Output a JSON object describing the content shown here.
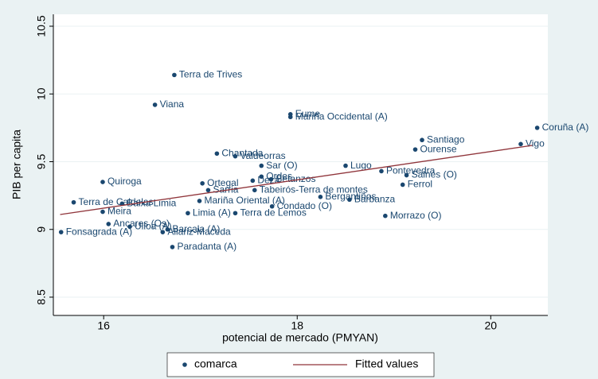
{
  "chart_data": {
    "type": "scatter",
    "x_label": "potencial de mercado (PMYAN)",
    "y_label": "PIB per capita",
    "xlim": [
      15.48,
      20.59
    ],
    "xticks": [
      16,
      18,
      20
    ],
    "ylim": [
      8.365,
      10.588
    ],
    "yticks": [
      8.5,
      9,
      9.5,
      10,
      10.5
    ],
    "grid": true,
    "series": [
      {
        "name": "comarca",
        "type": "scatter",
        "color": "#1a476f",
        "x": [
          16.73,
          16.53,
          17.93,
          17.93,
          20.48,
          19.29,
          20.31,
          19.22,
          17.17,
          17.36,
          17.63,
          18.5,
          18.87,
          19.13,
          17.63,
          17.73,
          17.54,
          19.09,
          15.99,
          17.02,
          15.69,
          16.19,
          15.99,
          16.05,
          16.27,
          15.56,
          16.61,
          16.66,
          16.71,
          18.91,
          17.74,
          17.56,
          16.99,
          18.54,
          18.24,
          17.08,
          17.36,
          16.87
        ],
        "values": [
          10.14,
          9.92,
          9.85,
          9.83,
          9.75,
          9.66,
          9.63,
          9.59,
          9.56,
          9.54,
          9.47,
          9.47,
          9.43,
          9.4,
          9.39,
          9.37,
          9.36,
          9.33,
          9.35,
          9.34,
          9.2,
          9.19,
          9.13,
          9.04,
          9.02,
          8.98,
          8.98,
          9.0,
          8.87,
          9.1,
          9.17,
          9.29,
          9.21,
          9.22,
          9.24,
          9.29,
          9.12,
          9.12
        ],
        "labels": [
          "Terra de Trives",
          "Viana",
          "Eume",
          "Mariña Occidental (A)",
          "Coruña (A)",
          "Santiago",
          "Vigo",
          "Ourense",
          "Chantada",
          "Valdeorras",
          "Sar (O)",
          "Lugo",
          "Pontevedra",
          "Salnés (O)",
          "Ordes",
          "Betanzos",
          "Deza",
          "Ferrol",
          "Quiroga",
          "Ortegal",
          "Terra de Caldelas",
          "Baixa Limia",
          "Meira",
          "Ancares (Os)",
          "Ulloa (A)",
          "Fonsagrada (A)",
          "Allariz-Maceda",
          "Barcala (A)",
          "Paradanta (A)",
          "Morrazo (O)",
          "Condado (O)",
          "Tabeirós-Terra de montes",
          "Mariña Oriental (A)",
          "Barbanza",
          "Bergantiños",
          "Sarria",
          "Terra de Lemos",
          "Limia (A)"
        ]
      },
      {
        "name": "Fitted values",
        "type": "line",
        "color": "#90353b",
        "x": [
          15.55,
          20.43
        ],
        "values": [
          9.11,
          9.62
        ]
      }
    ]
  }
}
